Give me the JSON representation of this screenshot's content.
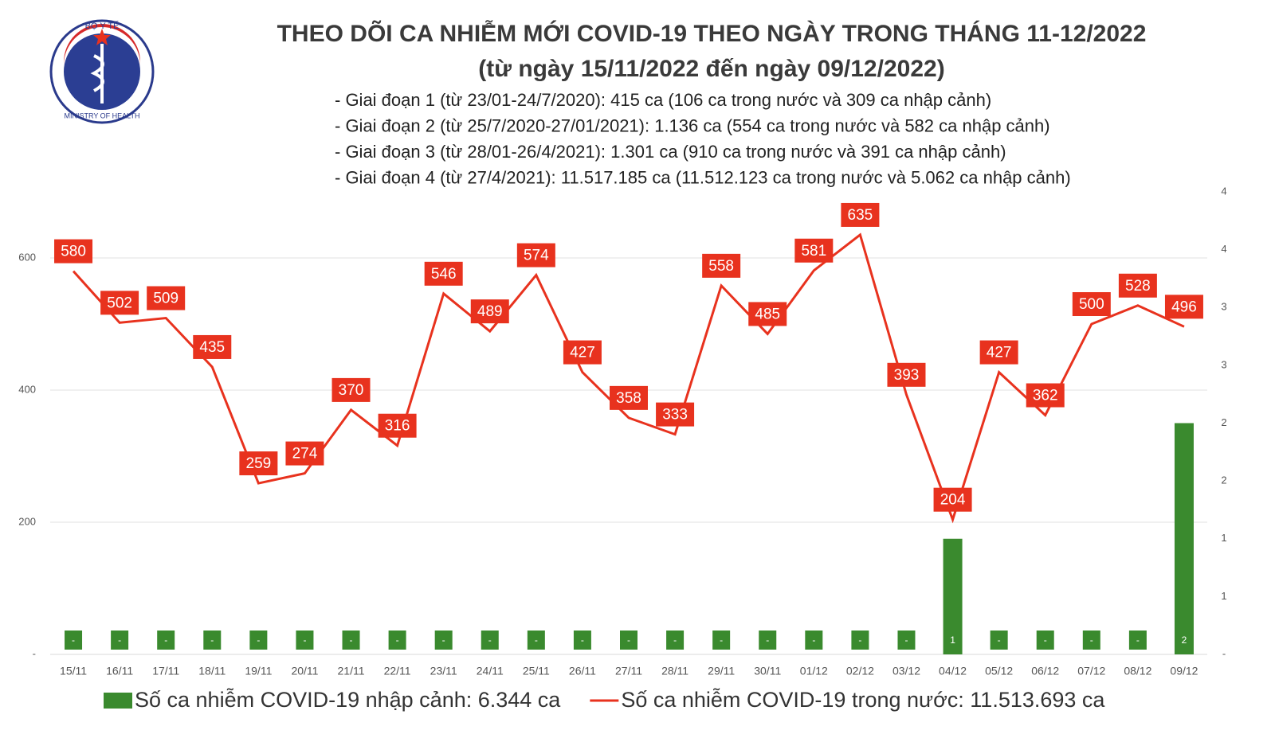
{
  "header": {
    "logo_top": "BỘ Y TẾ",
    "logo_bottom": "MINISTRY OF HEALTH",
    "title": "THEO DÕI CA NHIỄM MỚI COVID-19 THEO NGÀY TRONG THÁNG 11-12/2022",
    "subtitle": "(từ ngày 15/11/2022 đến ngày 09/12/2022)",
    "notes": [
      "- Giai đoạn 1 (từ 23/01-24/7/2020): 415 ca (106 ca trong nước và 309 ca nhập cảnh)",
      "- Giai đoạn 2 (từ 25/7/2020-27/01/2021): 1.136 ca (554 ca trong nước và 582 ca nhập cảnh)",
      "- Giai đoạn 3 (từ 28/01-26/4/2021): 1.301 ca (910 ca trong nước và 391 ca nhập cảnh)",
      "- Giai đoạn 4 (từ 27/4/2021): 11.517.185 ca (11.512.123 ca trong nước và 5.062 ca nhập cảnh)"
    ]
  },
  "chart_data": {
    "type": "combo",
    "categories": [
      "15/11",
      "16/11",
      "17/11",
      "18/11",
      "19/11",
      "20/11",
      "21/11",
      "22/11",
      "23/11",
      "24/11",
      "25/11",
      "26/11",
      "27/11",
      "28/11",
      "29/11",
      "30/11",
      "01/12",
      "02/12",
      "03/12",
      "04/12",
      "05/12",
      "06/12",
      "07/12",
      "08/12",
      "09/12"
    ],
    "series": [
      {
        "name": "Số ca nhiễm COVID-19 nhập cảnh: 6.344 ca",
        "type": "bar",
        "axis": "y2",
        "color": "#3a8a2e",
        "values": [
          0,
          0,
          0,
          0,
          0,
          0,
          0,
          0,
          0,
          0,
          0,
          0,
          0,
          0,
          0,
          0,
          0,
          0,
          0,
          1,
          0,
          0,
          0,
          0,
          2
        ],
        "value_labels": [
          "-",
          "-",
          "-",
          "-",
          "-",
          "-",
          "-",
          "-",
          "-",
          "-",
          "-",
          "-",
          "-",
          "-",
          "-",
          "-",
          "-",
          "-",
          "-",
          "1",
          "-",
          "-",
          "-",
          "-",
          "2"
        ]
      },
      {
        "name": "Số ca nhiễm COVID-19 trong nước: 11.513.693 ca",
        "type": "line",
        "color": "#e8321e",
        "values": [
          580,
          502,
          509,
          435,
          259,
          274,
          370,
          316,
          546,
          489,
          574,
          427,
          358,
          333,
          558,
          485,
          581,
          635,
          393,
          204,
          427,
          362,
          500,
          528,
          496
        ]
      }
    ],
    "ylim": [
      0,
      700
    ],
    "yticks": [
      {
        "value": 0,
        "label": "-"
      },
      200,
      400,
      600
    ],
    "y2lim": [
      0,
      4
    ],
    "y2ticks": [
      {
        "value": 0,
        "label": "-"
      },
      {
        "value": 0.5,
        "label": "1"
      },
      1,
      {
        "value": 1.5,
        "label": "2"
      },
      2,
      {
        "value": 2.5,
        "label": "3"
      },
      3,
      {
        "value": 3.5,
        "label": "4"
      },
      4
    ],
    "grid": true,
    "legend": "bottom"
  }
}
